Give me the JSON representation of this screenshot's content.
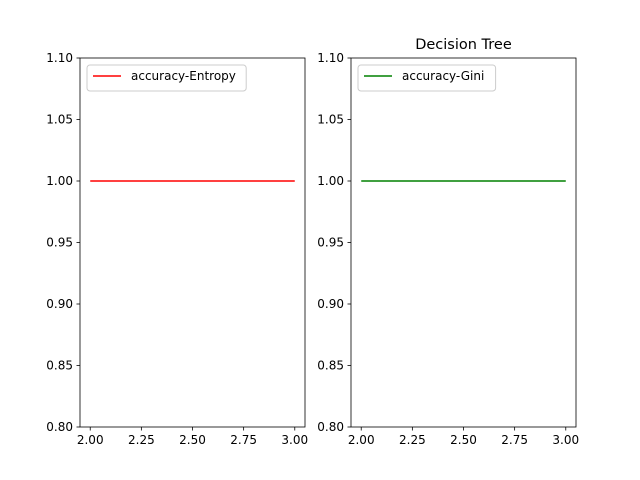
{
  "chart_data": [
    {
      "type": "line",
      "title": "",
      "xlabel": "",
      "ylabel": "",
      "xlim": [
        1.95,
        3.05
      ],
      "ylim": [
        0.8,
        1.1
      ],
      "xticks": [
        "2.00",
        "2.25",
        "2.50",
        "2.75",
        "3.00"
      ],
      "yticks": [
        "0.80",
        "0.85",
        "0.90",
        "0.95",
        "1.00",
        "1.05",
        "1.10"
      ],
      "grid": false,
      "legend_position": "top-left",
      "series": [
        {
          "name": "accuracy-Entropy",
          "color": "#ff0000",
          "x": [
            2,
            3
          ],
          "y": [
            1.0,
            1.0
          ]
        }
      ]
    },
    {
      "type": "line",
      "title": "Decision Tree",
      "xlabel": "",
      "ylabel": "",
      "xlim": [
        1.95,
        3.05
      ],
      "ylim": [
        0.8,
        1.1
      ],
      "xticks": [
        "2.00",
        "2.25",
        "2.50",
        "2.75",
        "3.00"
      ],
      "yticks": [
        "0.80",
        "0.85",
        "0.90",
        "0.95",
        "1.00",
        "1.05",
        "1.10"
      ],
      "grid": false,
      "legend_position": "top-left",
      "series": [
        {
          "name": "accuracy-Gini",
          "color": "#008000",
          "x": [
            2,
            3
          ],
          "y": [
            1.0,
            1.0
          ]
        }
      ]
    }
  ]
}
